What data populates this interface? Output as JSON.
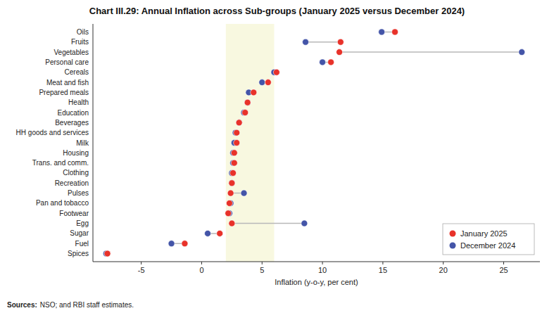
{
  "chart_data": {
    "type": "dumbbell",
    "orientation": "horizontal",
    "title": "Chart III.29: Annual Inflation across Sub-groups (January 2025 versus December 2024)",
    "x_label": "Inflation (y-o-y, per cent)",
    "categories": [
      "Oils",
      "Fruits",
      "Vegetables",
      "Personal care",
      "Cereals",
      "Meat and fish",
      "Prepared meals",
      "Health",
      "Education",
      "Beverages",
      "HH goods and services",
      "Milk",
      "Housing",
      "Trans. and comm.",
      "Clothing",
      "Recreation",
      "Pulses",
      "Pan and tobacco",
      "Footwear",
      "Egg",
      "Sugar",
      "Fuel",
      "Spices"
    ],
    "series": [
      {
        "name": "January 2025",
        "color": "#e8322a",
        "marker": "circle",
        "values": [
          16.0,
          11.5,
          11.4,
          10.7,
          6.2,
          5.5,
          4.3,
          3.8,
          3.6,
          3.1,
          2.9,
          2.9,
          2.7,
          2.7,
          2.6,
          2.5,
          2.4,
          2.3,
          2.2,
          2.5,
          1.5,
          -1.4,
          -7.8
        ]
      },
      {
        "name": "December 2024",
        "color": "#4455a8",
        "marker": "circle",
        "values": [
          14.9,
          8.6,
          26.5,
          10.0,
          6.0,
          5.0,
          3.9,
          3.8,
          3.5,
          3.1,
          2.8,
          2.7,
          2.6,
          2.6,
          2.5,
          2.5,
          3.5,
          2.4,
          2.3,
          8.5,
          0.5,
          -2.5,
          -7.9
        ]
      }
    ],
    "connector_color": "#b8b8b8",
    "shaded_range": {
      "values": [
        2,
        6
      ],
      "color": "#f8f8e0"
    },
    "xlim": [
      -9,
      28
    ],
    "xticks": [
      -5,
      0,
      5,
      10,
      15,
      20,
      25
    ],
    "grid": false,
    "legend": "lower right",
    "source_label": "Sources:",
    "source": "NSO; and RBI staff estimates."
  }
}
